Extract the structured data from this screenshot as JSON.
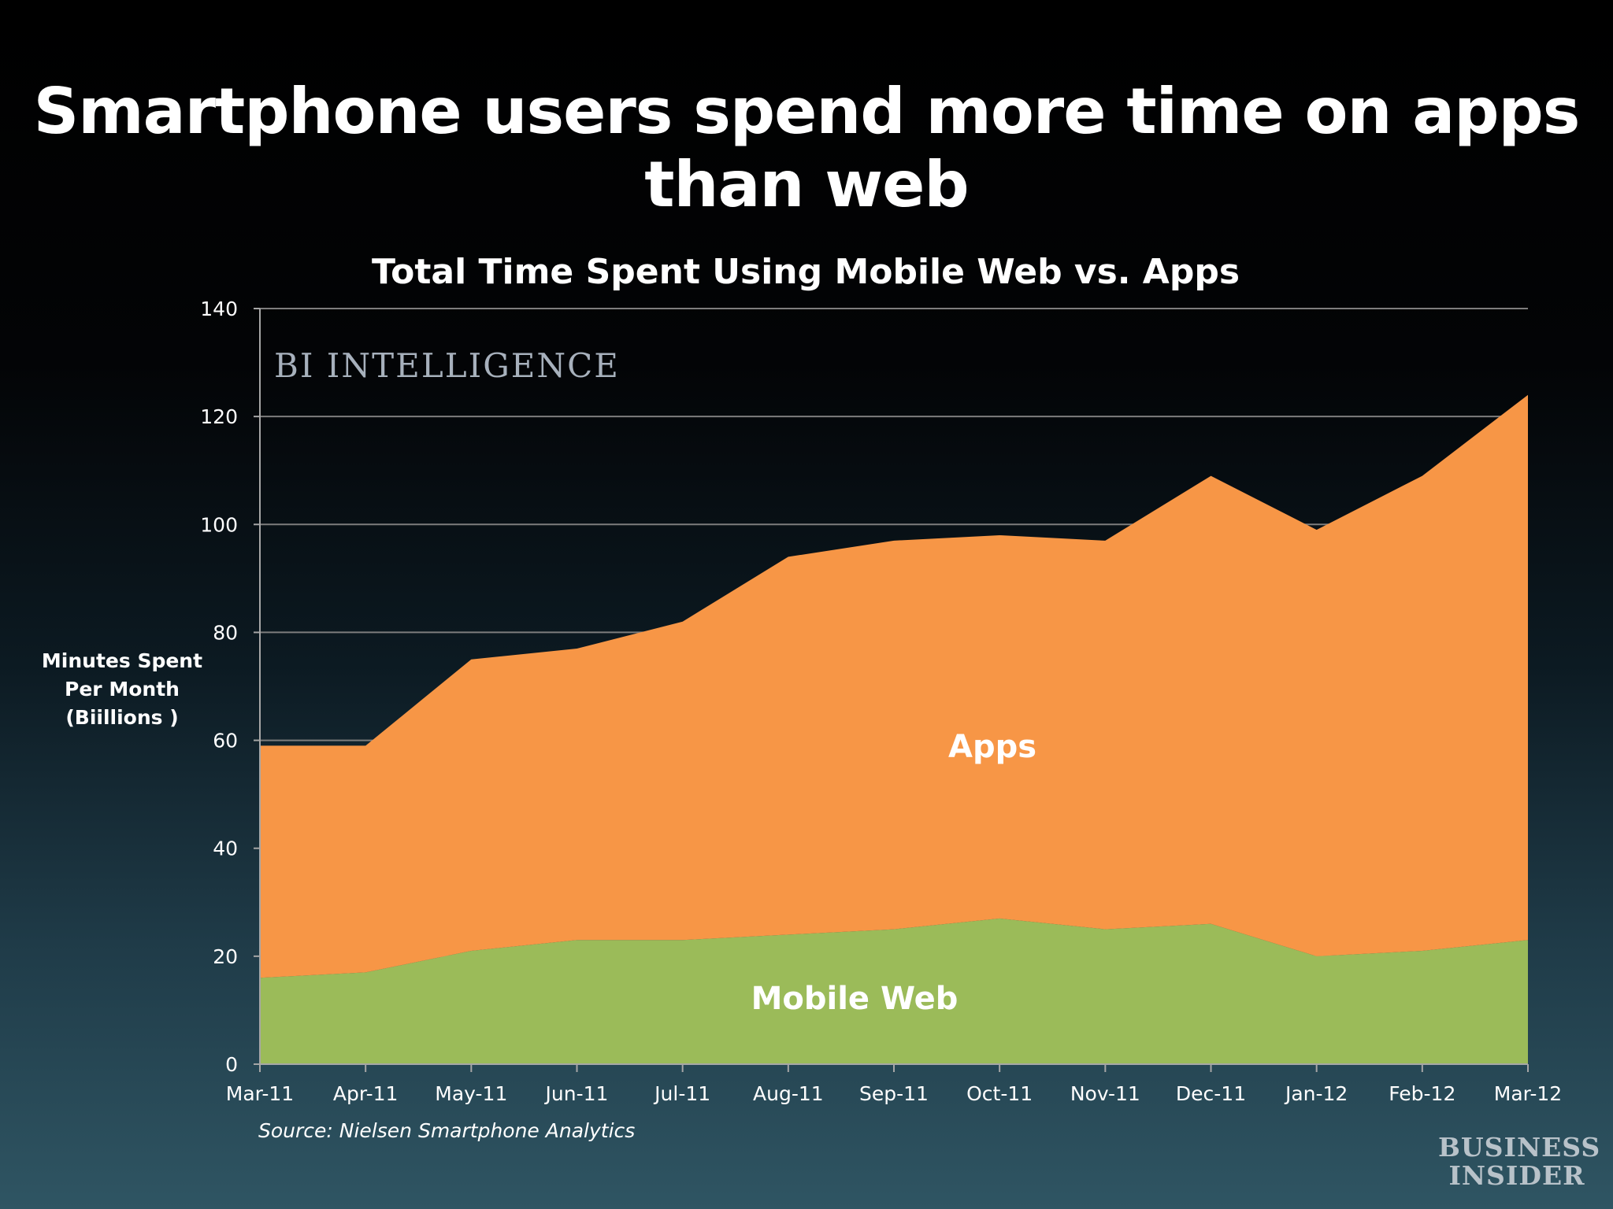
{
  "slide": {
    "title": "Smartphone users spend more time on apps than web",
    "source": "Source: Nielsen Smartphone Analytics",
    "watermark": "BI INTELLIGENCE",
    "brand_line1": "BUSINESS",
    "brand_line2": "INSIDER"
  },
  "chart_data": {
    "type": "area",
    "stacked": true,
    "title": "Total Time Spent Using Mobile Web vs. Apps",
    "ylabel_lines": [
      "Minutes Spent",
      "Per Month",
      "(Biillions )"
    ],
    "xlabel": "",
    "categories": [
      "Mar-11",
      "Apr-11",
      "May-11",
      "Jun-11",
      "Jul-11",
      "Aug-11",
      "Sep-11",
      "Oct-11",
      "Nov-11",
      "Dec-11",
      "Jan-12",
      "Feb-12",
      "Mar-12"
    ],
    "ylim": [
      0,
      140
    ],
    "yticks": [
      0,
      20,
      40,
      60,
      80,
      100,
      120,
      140
    ],
    "grid": true,
    "series": [
      {
        "name": "Mobile Web",
        "values": [
          16,
          17,
          21,
          23,
          23,
          24,
          25,
          27,
          25,
          26,
          20,
          21,
          23
        ],
        "color": "#9bbb59"
      },
      {
        "name": "Apps",
        "values": [
          43,
          42,
          54,
          54,
          59,
          70,
          72,
          71,
          72,
          83,
          79,
          88,
          101
        ],
        "color": "#f79646"
      }
    ]
  }
}
